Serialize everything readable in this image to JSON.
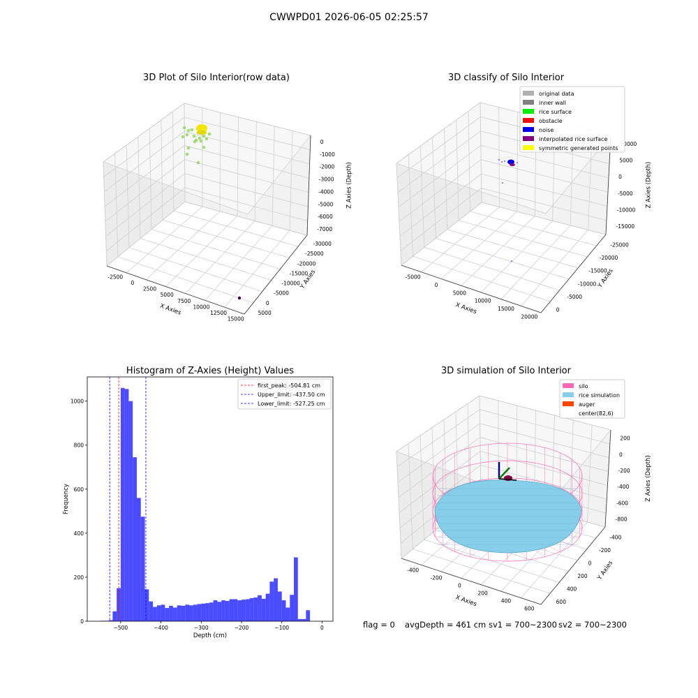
{
  "suptitle": "CWWPD01 2026-06-05 02:25:57",
  "panel1": {
    "title": "3D Plot of Silo Interior(row data)",
    "xlabel": "X Axies",
    "ylabel": "Y Axies",
    "zlabel": "Z Axies (Depth)",
    "xticks": [
      "-2500",
      "0",
      "2500",
      "5000",
      "7500",
      "10000",
      "12500",
      "15000"
    ],
    "yticks": [
      "5000",
      "0",
      "-5000",
      "-10000",
      "-15000",
      "-20000",
      "-25000",
      "-30000"
    ],
    "zticks": [
      "0",
      "-1000",
      "-2000",
      "-3000",
      "-4000",
      "-5000",
      "-6000",
      "-7000"
    ]
  },
  "panel2": {
    "title": "3D classify of Silo Interior",
    "xlabel": "X Axies",
    "ylabel": "Y Axies",
    "zlabel": "Z Axies (Depth)",
    "xticks": [
      "-5000",
      "0",
      "5000",
      "10000",
      "15000",
      "20000"
    ],
    "yticks": [
      "0",
      "-5000",
      "-10000",
      "-15000",
      "-20000",
      "-25000"
    ],
    "zticks": [
      "10000",
      "5000",
      "0",
      "-5000",
      "-10000",
      "-15000"
    ],
    "legend": [
      {
        "label": "original data",
        "color": "#b0b0b0"
      },
      {
        "label": "inner wall",
        "color": "#808080"
      },
      {
        "label": "rice surface",
        "color": "#00ee00"
      },
      {
        "label": "obstacle",
        "color": "#ee1111"
      },
      {
        "label": "noise",
        "color": "#0000ee"
      },
      {
        "label": "interpolated rice surface",
        "color": "#800080"
      },
      {
        "label": "symmetric generated points",
        "color": "#ffff00"
      }
    ]
  },
  "panel4": {
    "title": "3D simulation of Silo Interior",
    "xlabel": "X Axies",
    "ylabel": "Y Axies",
    "zlabel": "Z Axies (Depth)",
    "xticks": [
      "-400",
      "-200",
      "0",
      "200",
      "400",
      "600"
    ],
    "yticks": [
      "600",
      "400",
      "200",
      "0",
      "-200",
      "-400"
    ],
    "zticks": [
      "200",
      "0",
      "-200",
      "-400",
      "-600",
      "-800"
    ],
    "legend": [
      {
        "label": "silo",
        "color": "#ff69b4"
      },
      {
        "label": "rice simulation",
        "color": "#87ceeb"
      },
      {
        "label": "auger",
        "color": "#ff4500"
      },
      {
        "label": "center(82,6)",
        "color": ""
      }
    ]
  },
  "status": {
    "flag": "flag = 0",
    "avg": "avgDepth = 461 cm",
    "sv1": "sv1 = 700~2300",
    "sv2": "sv2 = 700~2300"
  },
  "chart_data": [
    {
      "type": "bar",
      "title": "Histogram of Z-Axies (Height) Values",
      "xlabel": "Depth (cm)",
      "ylabel": "Frequency",
      "xlim": [
        -583,
        27
      ],
      "ylim": [
        0,
        1110
      ],
      "bin_width": 10,
      "xticks": [
        -500,
        -400,
        -300,
        -200,
        -100,
        0
      ],
      "yticks": [
        0,
        200,
        400,
        600,
        800,
        1000
      ],
      "color": "#0000ff",
      "bin_starts": [
        -550,
        -540,
        -530,
        -520,
        -510,
        -500,
        -490,
        -480,
        -470,
        -460,
        -450,
        -440,
        -430,
        -420,
        -410,
        -400,
        -390,
        -380,
        -370,
        -360,
        -350,
        -340,
        -330,
        -320,
        -310,
        -300,
        -290,
        -280,
        -270,
        -260,
        -250,
        -240,
        -230,
        -220,
        -210,
        -200,
        -190,
        -180,
        -170,
        -160,
        -150,
        -140,
        -130,
        -120,
        -110,
        -100,
        -90,
        -80,
        -70,
        -60,
        -50,
        -40,
        -30,
        -20,
        -10,
        0
      ],
      "values": [
        2,
        2,
        5,
        45,
        150,
        1060,
        1055,
        1000,
        745,
        560,
        475,
        145,
        90,
        65,
        72,
        75,
        60,
        70,
        62,
        72,
        70,
        75,
        72,
        75,
        78,
        80,
        82,
        85,
        95,
        88,
        95,
        92,
        100,
        100,
        95,
        98,
        100,
        105,
        108,
        118,
        102,
        125,
        180,
        195,
        135,
        95,
        62,
        120,
        290,
        10,
        10,
        50,
        0,
        0,
        0,
        0
      ],
      "annotations": [
        {
          "label": "first_peak: -504.81 cm",
          "x": -504.81,
          "color": "#ff0000"
        },
        {
          "label": "Upper_limit: -437.50 cm",
          "x": -437.5,
          "color": "#0000ff"
        },
        {
          "label": "Lower_limit: -527.25 cm",
          "x": -527.25,
          "color": "#0000ff"
        }
      ]
    }
  ]
}
